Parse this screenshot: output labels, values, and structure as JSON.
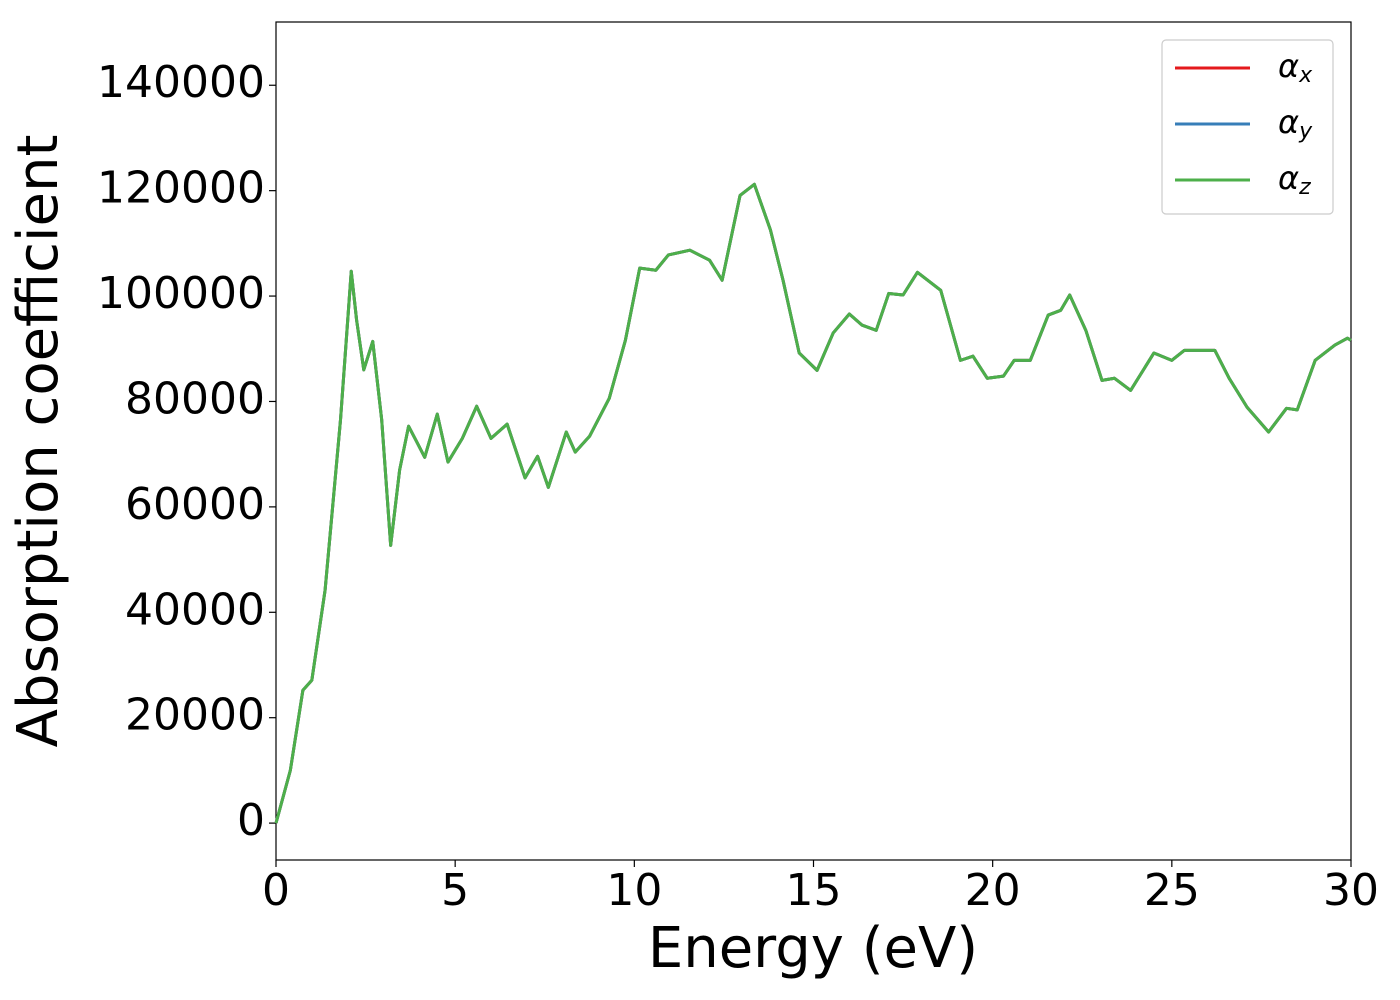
{
  "chart_data": {
    "type": "line",
    "xlabel": "Energy (eV)",
    "ylabel": "Absorption coefficient",
    "x": [
      0,
      0.4,
      0.75,
      1.0,
      1.37,
      1.8,
      2.1,
      2.25,
      2.45,
      2.7,
      2.95,
      3.2,
      3.45,
      3.7,
      3.9,
      4.15,
      4.5,
      4.8,
      5.2,
      5.6,
      6.0,
      6.45,
      6.95,
      7.3,
      7.6,
      8.1,
      8.35,
      8.75,
      9.3,
      9.75,
      10.15,
      10.6,
      10.95,
      11.55,
      12.1,
      12.45,
      12.95,
      13.35,
      13.8,
      14.15,
      14.6,
      15.1,
      15.55,
      16.0,
      16.35,
      16.75,
      17.1,
      17.5,
      17.9,
      18.55,
      19.1,
      19.45,
      19.85,
      20.3,
      20.6,
      21.05,
      21.55,
      21.9,
      22.15,
      22.6,
      23.05,
      23.4,
      23.85,
      24.5,
      25.0,
      25.35,
      26.2,
      26.6,
      27.1,
      27.7,
      28.2,
      28.5,
      29.0,
      29.55,
      29.9,
      30.0
    ],
    "series": [
      {
        "name": "αx",
        "color": "#e41a1c",
        "values": [
          0,
          10000,
          25200,
          27100,
          44200,
          76500,
          104700,
          95400,
          86000,
          91400,
          76500,
          52700,
          67000,
          75300,
          72700,
          69400,
          77600,
          68500,
          73000,
          79100,
          73000,
          75700,
          65500,
          69600,
          63700,
          74200,
          70400,
          73400,
          80600,
          91600,
          105300,
          104900,
          107800,
          108700,
          106800,
          103000,
          119100,
          121200,
          112500,
          103000,
          89200,
          85900,
          93000,
          96600,
          94500,
          93500,
          100500,
          100200,
          104500,
          101100,
          87800,
          88600,
          84400,
          84800,
          87800,
          87800,
          96400,
          97300,
          100200,
          93500,
          84000,
          84400,
          82100,
          89200,
          87800,
          89700,
          89700,
          84400,
          78900,
          74200,
          78700,
          78400,
          87800,
          90700,
          92000,
          91600
        ]
      },
      {
        "name": "αy",
        "color": "#377eb8",
        "values": [
          0,
          10000,
          25200,
          27100,
          44200,
          76500,
          104700,
          95400,
          86000,
          91400,
          76500,
          52700,
          67000,
          75300,
          72700,
          69400,
          77600,
          68500,
          73000,
          79100,
          73000,
          75700,
          65500,
          69600,
          63700,
          74200,
          70400,
          73400,
          80600,
          91600,
          105300,
          104900,
          107800,
          108700,
          106800,
          103000,
          119100,
          121200,
          112500,
          103000,
          89200,
          85900,
          93000,
          96600,
          94500,
          93500,
          100500,
          100200,
          104500,
          101100,
          87800,
          88600,
          84400,
          84800,
          87800,
          87800,
          96400,
          97300,
          100200,
          93500,
          84000,
          84400,
          82100,
          89200,
          87800,
          89700,
          89700,
          84400,
          78900,
          74200,
          78700,
          78400,
          87800,
          90700,
          92000,
          91600
        ]
      },
      {
        "name": "αz",
        "color": "#4daf4a",
        "values": [
          0,
          10000,
          25200,
          27100,
          44200,
          76500,
          104700,
          95400,
          86000,
          91400,
          76500,
          52700,
          67000,
          75300,
          72700,
          69400,
          77600,
          68500,
          73000,
          79100,
          73000,
          75700,
          65500,
          69600,
          63700,
          74200,
          70400,
          73400,
          80600,
          91600,
          105300,
          104900,
          107800,
          108700,
          106800,
          103000,
          119100,
          121200,
          112500,
          103000,
          89200,
          85900,
          93000,
          96600,
          94500,
          93500,
          100500,
          100200,
          104500,
          101100,
          87800,
          88600,
          84400,
          84800,
          87800,
          87800,
          96400,
          97300,
          100200,
          93500,
          84000,
          84400,
          82100,
          89200,
          87800,
          89700,
          89700,
          84400,
          78900,
          74200,
          78700,
          78400,
          87800,
          90700,
          92000,
          91600
        ]
      }
    ],
    "xlim": [
      0,
      30
    ],
    "xticks": [
      0,
      5,
      10,
      15,
      20,
      25,
      30
    ],
    "ylim": [
      -7000,
      152000
    ],
    "yticks": [
      0,
      20000,
      40000,
      60000,
      80000,
      100000,
      120000,
      140000
    ],
    "grid": false,
    "legend": "upper right"
  }
}
